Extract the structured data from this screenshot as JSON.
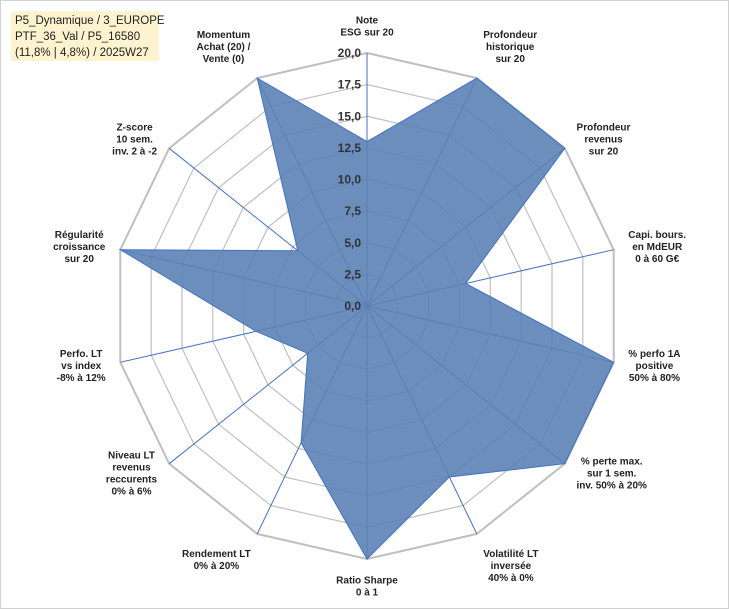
{
  "header": {
    "lines": [
      "P5_Dynamique / 3_EUROPE",
      "PTF_36_Val / P5_16580",
      "(11,8% | 4,8%) / 2025W27"
    ]
  },
  "colors": {
    "fill": "#5b82b5",
    "stroke": "#4472c4",
    "grid": "#bfbfbf",
    "spoke": "#4472c4",
    "info_bg": "#fdf3cf"
  },
  "chart_data": {
    "type": "radar",
    "rmin": 0,
    "rmax": 20,
    "ticks": [
      "0,0",
      "2,5",
      "5,0",
      "7,5",
      "10,0",
      "12,5",
      "15,0",
      "17,5",
      "20,0"
    ],
    "grid": true,
    "axes": [
      {
        "label": [
          "Note",
          "ESG sur 20"
        ],
        "value": 13
      },
      {
        "label": [
          "Profondeur",
          "historique",
          "sur 20"
        ],
        "value": 20
      },
      {
        "label": [
          "Profondeur",
          "revenus",
          "sur 20"
        ],
        "value": 20
      },
      {
        "label": [
          "Capi. bours.",
          "en MdEUR",
          "0 à 60 G€"
        ],
        "value": 8
      },
      {
        "label": [
          "% perfo 1A",
          "positive",
          "50% à 80%"
        ],
        "value": 20
      },
      {
        "label": [
          "% perte max.",
          "sur 1 sem.",
          "inv. 50% à 20%"
        ],
        "value": 20
      },
      {
        "label": [
          "Volatilité LT",
          "inversée",
          "40% à 0%"
        ],
        "value": 15
      },
      {
        "label": [
          "Ratio Sharpe",
          "0 à 1"
        ],
        "value": 20
      },
      {
        "label": [
          "Rendement LT",
          "0% à 20%"
        ],
        "value": 12
      },
      {
        "label": [
          "Niveau LT",
          "revenus",
          "reccurents",
          "0% à 6%"
        ],
        "value": 6
      },
      {
        "label": [
          "Perfo. LT",
          "vs index",
          "-8% à 12%"
        ],
        "value": 9
      },
      {
        "label": [
          "Régularité",
          "croissance",
          "sur 20"
        ],
        "value": 20
      },
      {
        "label": [
          "Z-score",
          "10 sem.",
          "inv. 2 à -2"
        ],
        "value": 7
      },
      {
        "label": [
          "Momentum",
          "Achat (20) /",
          "Vente (0)"
        ],
        "value": 20
      }
    ]
  }
}
